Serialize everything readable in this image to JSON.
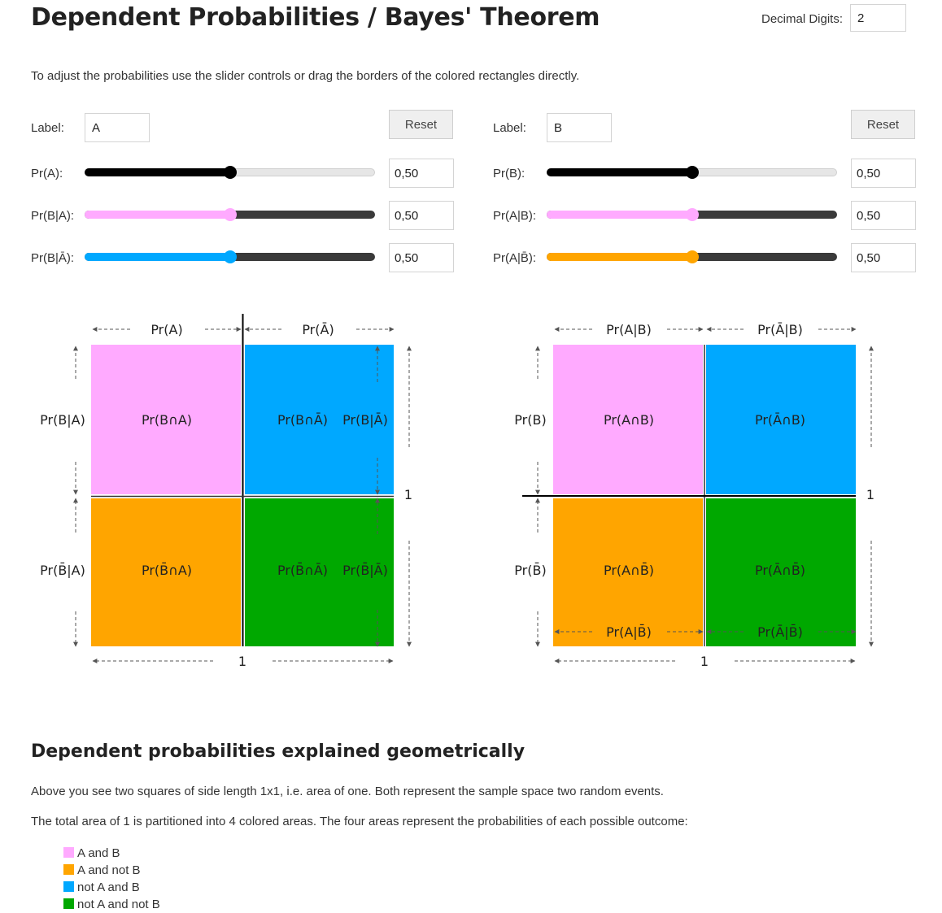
{
  "title": "Dependent Probabilities / Bayes' Theorem",
  "decimal_digits": {
    "label": "Decimal Digits:",
    "value": "2"
  },
  "intro": "To adjust the probabilities use the slider controls or drag the borders of the colored rectangles directly.",
  "left_panel": {
    "label_caption": "Label:",
    "label_value": "A",
    "reset_label": "Reset",
    "sliders": [
      {
        "caption": "Pr(A):",
        "value_text": "0,50",
        "fraction": 0.5,
        "fill_color": "#000000",
        "track_color": "#e6e6e6",
        "thumb_color": "#000000"
      },
      {
        "caption": "Pr(B|A):",
        "value_text": "0,50",
        "fraction": 0.5,
        "fill_color": "#ffaaff",
        "track_color": "#3a3a3a",
        "thumb_color": "#ffaaff"
      },
      {
        "caption": "Pr(B|Ā):",
        "value_text": "0,50",
        "fraction": 0.5,
        "fill_color": "#00a8ff",
        "track_color": "#3a3a3a",
        "thumb_color": "#00a8ff"
      }
    ]
  },
  "right_panel": {
    "label_caption": "Label:",
    "label_value": "B",
    "reset_label": "Reset",
    "sliders": [
      {
        "caption": "Pr(B):",
        "value_text": "0,50",
        "fraction": 0.5,
        "fill_color": "#000000",
        "track_color": "#e6e6e6",
        "thumb_color": "#000000"
      },
      {
        "caption": "Pr(A|B):",
        "value_text": "0,50",
        "fraction": 0.5,
        "fill_color": "#ffaaff",
        "track_color": "#3a3a3a",
        "thumb_color": "#ffaaff"
      },
      {
        "caption": "Pr(A|B̄):",
        "value_text": "0,50",
        "fraction": 0.5,
        "fill_color": "#ffa500",
        "track_color": "#3a3a3a",
        "thumb_color": "#ffa500"
      }
    ]
  },
  "colors": {
    "pink": "#ffaaff",
    "blue": "#00a8ff",
    "orange": "#ffa500",
    "green": "#00a800"
  },
  "diagram_left": {
    "top_left_label": "Pr(A)",
    "top_right_label": "Pr(Ā)",
    "left_top_label": "Pr(B|A)",
    "left_bottom_label": "Pr(B̄|A)",
    "cell_tl": "Pr(B∩A)",
    "cell_tr": "Pr(B∩Ā)",
    "cell_tr_side": "Pr(B|Ā)",
    "cell_bl": "Pr(B̄∩A)",
    "cell_br": "Pr(B̄∩Ā)",
    "cell_br_side": "Pr(B̄|Ā)",
    "bottom_one": "1",
    "right_one": "1"
  },
  "diagram_right": {
    "top_left_label": "Pr(A|B)",
    "top_right_label": "Pr(Ā|B)",
    "left_top_label": "Pr(B)",
    "left_bottom_label": "Pr(B̄)",
    "cell_tl": "Pr(A∩B)",
    "cell_tr": "Pr(Ā∩B)",
    "cell_bl": "Pr(A∩B̄)",
    "cell_br": "Pr(Ā∩B̄)",
    "bottom_left_label": "Pr(A|B̄)",
    "bottom_right_label": "Pr(Ā|B̄)",
    "bottom_one": "1",
    "right_one": "1"
  },
  "explanation": {
    "heading": "Dependent probabilities explained geometrically",
    "para1": "Above you see two squares of side length 1x1, i.e. area of one. Both represent the sample space two random events.",
    "para2": "The total area of 1 is partitioned into 4 colored areas. The four areas represent the probabilities of each possible outcome:",
    "legend": [
      {
        "label": "A and B",
        "color": "#ffaaff"
      },
      {
        "label": "A and not B",
        "color": "#ffa500"
      },
      {
        "label": "not A and B",
        "color": "#00a8ff"
      },
      {
        "label": "not A and not B",
        "color": "#00a800"
      }
    ]
  }
}
